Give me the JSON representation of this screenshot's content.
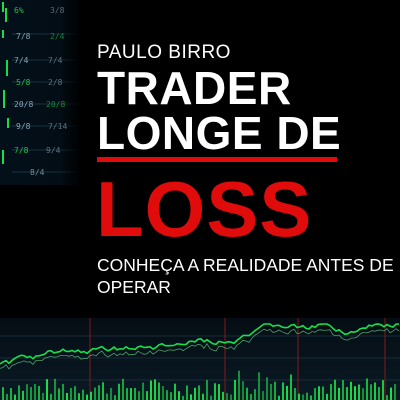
{
  "cover": {
    "author": "PAULO BIRRO",
    "title_line1": "TRADER",
    "title_line2": "LONGE DE",
    "title_accent": "LOSS",
    "subtitle": "CONHEÇA A REALIDADE ANTES DE OPERAR"
  },
  "ticker_glimpses": [
    "6%",
    "3/8",
    "7/8",
    "2/4",
    "7/4",
    "7/4",
    "5/8",
    "2/8",
    "20/8",
    "20/8",
    "9/8",
    "7/14",
    "7/8",
    "9/4",
    "8/4"
  ],
  "colors": {
    "background": "#000000",
    "accent_red": "#e00b0b",
    "chart_green": "#19e04a",
    "text": "#ffffff"
  }
}
